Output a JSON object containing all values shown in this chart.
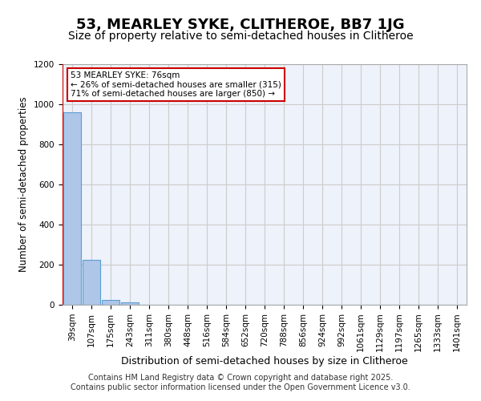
{
  "title1": "53, MEARLEY SYKE, CLITHEROE, BB7 1JG",
  "title2": "Size of property relative to semi-detached houses in Clitheroe",
  "xlabel": "Distribution of semi-detached houses by size in Clitheroe",
  "ylabel": "Number of semi-detached properties",
  "bin_labels": [
    "39sqm",
    "107sqm",
    "175sqm",
    "243sqm",
    "311sqm",
    "380sqm",
    "448sqm",
    "516sqm",
    "584sqm",
    "652sqm",
    "720sqm",
    "788sqm",
    "856sqm",
    "924sqm",
    "992sqm",
    "1061sqm",
    "1129sqm",
    "1197sqm",
    "1265sqm",
    "1333sqm",
    "1401sqm"
  ],
  "bar_values": [
    960,
    225,
    25,
    12,
    0,
    0,
    0,
    0,
    0,
    0,
    0,
    0,
    0,
    0,
    0,
    0,
    0,
    0,
    0,
    0,
    0
  ],
  "bar_color": "#aec6e8",
  "bar_edge_color": "#5a9fd4",
  "annotation_line1": "53 MEARLEY SYKE: 76sqm",
  "annotation_line2": "← 26% of semi-detached houses are smaller (315)",
  "annotation_line3": "71% of semi-detached houses are larger (850) →",
  "annotation_box_color": "#ffffff",
  "annotation_box_edge_color": "#cc0000",
  "annotation_text_color": "#000000",
  "vline_color": "#cc0000",
  "ylim": [
    0,
    1200
  ],
  "yticks": [
    0,
    200,
    400,
    600,
    800,
    1000,
    1200
  ],
  "grid_color": "#cccccc",
  "background_color": "#eef2fa",
  "footer_text1": "Contains HM Land Registry data © Crown copyright and database right 2025.",
  "footer_text2": "Contains public sector information licensed under the Open Government Licence v3.0.",
  "title1_fontsize": 13,
  "title2_fontsize": 10,
  "xlabel_fontsize": 9,
  "ylabel_fontsize": 8.5,
  "tick_fontsize": 7.5,
  "footer_fontsize": 7
}
